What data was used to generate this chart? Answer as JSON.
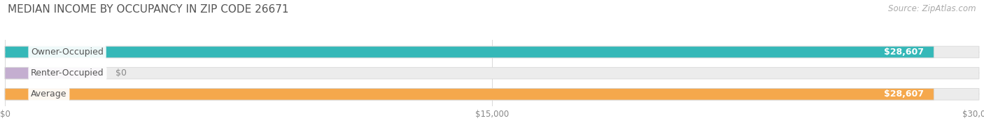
{
  "title": "MEDIAN INCOME BY OCCUPANCY IN ZIP CODE 26671",
  "source": "Source: ZipAtlas.com",
  "categories": [
    "Owner-Occupied",
    "Renter-Occupied",
    "Average"
  ],
  "values": [
    28607,
    0,
    28607
  ],
  "bar_colors": [
    "#35b8b8",
    "#c4aed0",
    "#f5a84c"
  ],
  "bar_bg_color": "#ececec",
  "bar_border_color": "#d8d8d8",
  "bg_color": "#ffffff",
  "label_bg_color": "#ffffff",
  "label_text_color": "#555555",
  "value_text_color": "#ffffff",
  "zero_value_color": "#888888",
  "grid_color": "#d8d8d8",
  "title_color": "#555555",
  "source_color": "#aaaaaa",
  "xlim": [
    0,
    30000
  ],
  "xticks": [
    0,
    15000,
    30000
  ],
  "xtick_labels": [
    "$0",
    "$15,000",
    "$30,000"
  ],
  "title_fontsize": 11,
  "source_fontsize": 8.5,
  "label_fontsize": 9,
  "value_fontsize": 9,
  "bar_height": 0.55,
  "renter_bar_width": 3000
}
